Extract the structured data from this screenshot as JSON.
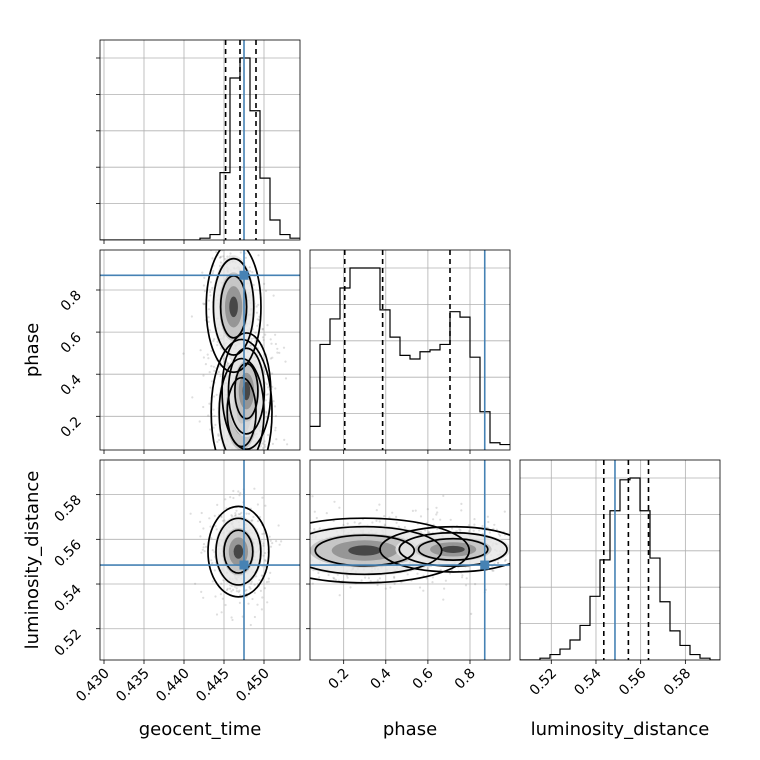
{
  "chart_data": {
    "type": "corner",
    "parameters": [
      "geocent_time",
      "phase",
      "luminosity_distance"
    ],
    "axis_labels": {
      "geocent_time": "geocent_time",
      "phase": "phase",
      "luminosity_distance": "luminosity_distance"
    },
    "ranges": {
      "geocent_time": [
        0.4295,
        0.4545
      ],
      "phase": [
        0.04,
        0.99
      ],
      "luminosity_distance": [
        0.506,
        0.5955
      ]
    },
    "ticks": {
      "geocent_time": [
        0.43,
        0.435,
        0.44,
        0.445,
        0.45
      ],
      "phase": [
        0.2,
        0.4,
        0.6,
        0.8
      ],
      "luminosity_distance": [
        0.52,
        0.54,
        0.56,
        0.58
      ]
    },
    "tick_labels": {
      "geocent_time": [
        "0.430",
        "0.435",
        "0.440",
        "0.445",
        "0.450"
      ],
      "phase": [
        "0.2",
        "0.4",
        "0.6",
        "0.8"
      ],
      "luminosity_distance": [
        "0.52",
        "0.54",
        "0.56",
        "0.58"
      ]
    },
    "truths": {
      "geocent_time": 0.4475,
      "phase": 0.87,
      "luminosity_distance": 0.5485
    },
    "quantiles": {
      "geocent_time": [
        0.4452,
        0.447,
        0.449
      ],
      "phase": [
        0.205,
        0.385,
        0.705
      ],
      "luminosity_distance": [
        0.5435,
        0.5545,
        0.5635
      ]
    },
    "histograms": {
      "geocent_time": {
        "edges": [
          0.4295,
          0.43075,
          0.432,
          0.43325,
          0.4345,
          0.43575,
          0.437,
          0.43825,
          0.4395,
          0.44075,
          0.442,
          0.44325,
          0.4445,
          0.44575,
          0.447,
          0.44825,
          0.4495,
          0.45075,
          0.452,
          0.45325,
          0.4545
        ],
        "counts": [
          0,
          0,
          0,
          0,
          0,
          0,
          0,
          0,
          0,
          0,
          0.01,
          0.03,
          0.37,
          0.89,
          1.0,
          0.71,
          0.34,
          0.11,
          0.03,
          0.01
        ]
      },
      "phase": {
        "edges": [
          0.04,
          0.0875,
          0.135,
          0.1825,
          0.23,
          0.2775,
          0.325,
          0.3725,
          0.42,
          0.4675,
          0.515,
          0.5625,
          0.61,
          0.6575,
          0.705,
          0.7525,
          0.8,
          0.8475,
          0.895,
          0.9425,
          0.99
        ],
        "counts": [
          0.13,
          0.58,
          0.72,
          0.89,
          1.0,
          1.0,
          1.0,
          0.77,
          0.62,
          0.52,
          0.5,
          0.54,
          0.55,
          0.58,
          0.76,
          0.73,
          0.51,
          0.21,
          0.04,
          0.03
        ]
      },
      "luminosity_distance": {
        "edges": [
          0.506,
          0.510475,
          0.51495,
          0.519425,
          0.5239,
          0.528375,
          0.53285,
          0.537325,
          0.5418,
          0.546275,
          0.55075,
          0.555225,
          0.5597,
          0.564175,
          0.56865,
          0.573125,
          0.5776,
          0.582075,
          0.58655,
          0.591025,
          0.5955
        ],
        "counts": [
          0,
          0,
          0.01,
          0.03,
          0.06,
          0.11,
          0.19,
          0.35,
          0.55,
          0.82,
          0.99,
          1.0,
          0.82,
          0.56,
          0.32,
          0.16,
          0.08,
          0.03,
          0.01,
          0
        ]
      }
    },
    "density_panels": [
      {
        "x": "geocent_time",
        "y": "phase",
        "modes": [
          {
            "x": 0.4462,
            "y": 0.72,
            "weight": 0.9
          },
          {
            "x": 0.4472,
            "y": 0.22,
            "weight": 1.0
          },
          {
            "x": 0.4478,
            "y": 0.32,
            "weight": 0.8
          }
        ]
      },
      {
        "x": "geocent_time",
        "y": "luminosity_distance",
        "modes": [
          {
            "x": 0.4468,
            "y": 0.5545,
            "weight": 1.0
          }
        ]
      },
      {
        "x": "phase",
        "y": "luminosity_distance",
        "modes": [
          {
            "x": 0.3,
            "y": 0.555,
            "weight": 1.0
          },
          {
            "x": 0.72,
            "y": 0.5555,
            "weight": 0.7
          }
        ]
      }
    ],
    "grid": true
  }
}
